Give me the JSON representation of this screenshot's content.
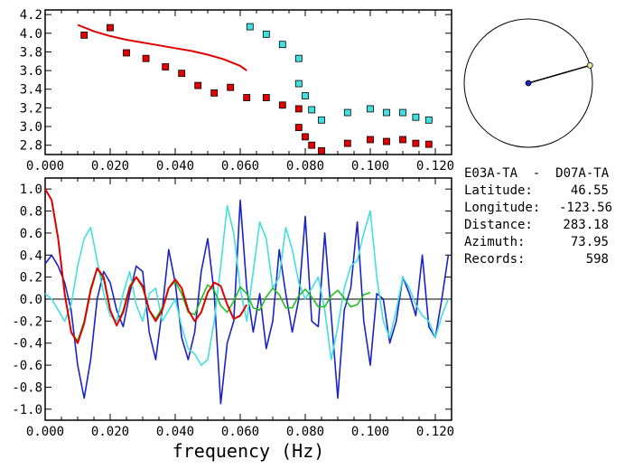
{
  "chart_data": [
    {
      "type": "scatter",
      "xlim": [
        0.0,
        0.125
      ],
      "ylim": [
        2.7,
        4.25
      ],
      "x_ticks": [
        "0.000",
        "0.020",
        "0.040",
        "0.060",
        "0.080",
        "0.100",
        "0.120"
      ],
      "y_ticks": [
        "2.8",
        "3.0",
        "3.2",
        "3.4",
        "3.6",
        "3.8",
        "4.0",
        "4.2"
      ],
      "series": [
        {
          "marker": "square",
          "color": "#e00000",
          "points": [
            [
              0.012,
              3.98
            ],
            [
              0.02,
              4.06
            ],
            [
              0.025,
              3.79
            ],
            [
              0.031,
              3.73
            ],
            [
              0.037,
              3.64
            ],
            [
              0.042,
              3.57
            ],
            [
              0.047,
              3.44
            ],
            [
              0.052,
              3.36
            ],
            [
              0.057,
              3.42
            ],
            [
              0.062,
              3.31
            ],
            [
              0.068,
              3.31
            ],
            [
              0.073,
              3.23
            ],
            [
              0.078,
              3.19
            ],
            [
              0.078,
              2.99
            ],
            [
              0.08,
              2.89
            ],
            [
              0.082,
              2.8
            ],
            [
              0.085,
              2.74
            ],
            [
              0.093,
              2.82
            ],
            [
              0.1,
              2.86
            ],
            [
              0.105,
              2.84
            ],
            [
              0.11,
              2.86
            ],
            [
              0.114,
              2.82
            ],
            [
              0.118,
              2.81
            ]
          ]
        },
        {
          "marker": "square",
          "color": "#40e0e0",
          "points": [
            [
              0.063,
              4.07
            ],
            [
              0.068,
              3.99
            ],
            [
              0.073,
              3.88
            ],
            [
              0.078,
              3.73
            ],
            [
              0.078,
              3.46
            ],
            [
              0.08,
              3.33
            ],
            [
              0.082,
              3.18
            ],
            [
              0.085,
              3.07
            ],
            [
              0.093,
              3.15
            ],
            [
              0.1,
              3.19
            ],
            [
              0.105,
              3.15
            ],
            [
              0.11,
              3.15
            ],
            [
              0.114,
              3.1
            ],
            [
              0.118,
              3.07
            ]
          ]
        },
        {
          "type": "line",
          "color": "#e00000",
          "x": [
            0.01,
            0.015,
            0.02,
            0.025,
            0.03,
            0.035,
            0.04,
            0.045,
            0.05,
            0.055,
            0.06,
            0.062
          ],
          "y": [
            4.09,
            4.02,
            3.97,
            3.93,
            3.9,
            3.87,
            3.84,
            3.81,
            3.77,
            3.72,
            3.65,
            3.6
          ]
        }
      ]
    },
    {
      "type": "line",
      "xlim": [
        0.0,
        0.125
      ],
      "ylim": [
        -1.1,
        1.1
      ],
      "x_ticks": [
        "0.000",
        "0.020",
        "0.040",
        "0.060",
        "0.080",
        "0.100",
        "0.120"
      ],
      "y_ticks": [
        "1.0",
        "0.8",
        "0.6",
        "0.4",
        "0.2",
        "0.0",
        "-0.2",
        "-0.4",
        "-0.6",
        "-0.8",
        "-1.0"
      ],
      "xlabel": "frequency (Hz)",
      "zero_line": true,
      "series": [
        {
          "color": "#1a22c8",
          "x": [
            0.0,
            0.002,
            0.004,
            0.006,
            0.008,
            0.01,
            0.012,
            0.014,
            0.016,
            0.018,
            0.02,
            0.022,
            0.024,
            0.026,
            0.028,
            0.03,
            0.032,
            0.034,
            0.036,
            0.038,
            0.04,
            0.042,
            0.044,
            0.046,
            0.048,
            0.05,
            0.052,
            0.054,
            0.056,
            0.058,
            0.06,
            0.062,
            0.064,
            0.066,
            0.068,
            0.07,
            0.072,
            0.074,
            0.076,
            0.078,
            0.08,
            0.082,
            0.084,
            0.086,
            0.088,
            0.09,
            0.092,
            0.094,
            0.096,
            0.098,
            0.1,
            0.102,
            0.104,
            0.106,
            0.108,
            0.11,
            0.112,
            0.114,
            0.116,
            0.118,
            0.12,
            0.122,
            0.124
          ],
          "y": [
            0.32,
            0.4,
            0.3,
            0.15,
            -0.1,
            -0.6,
            -0.9,
            -0.55,
            0.0,
            0.25,
            0.15,
            -0.1,
            -0.25,
            0.05,
            0.3,
            0.25,
            -0.3,
            -0.55,
            -0.1,
            0.45,
            0.15,
            -0.35,
            -0.55,
            -0.3,
            0.25,
            0.55,
            0.05,
            -0.95,
            -0.4,
            -0.2,
            0.9,
            0.1,
            -0.3,
            0.05,
            -0.45,
            -0.2,
            0.45,
            0.05,
            -0.3,
            0.0,
            0.75,
            -0.2,
            -0.25,
            0.6,
            -0.15,
            -0.9,
            -0.1,
            0.1,
            0.7,
            -0.2,
            -0.6,
            0.05,
            0.0,
            -0.4,
            -0.2,
            0.2,
            0.05,
            -0.15,
            0.4,
            -0.25,
            -0.35,
            0.0,
            0.4
          ]
        },
        {
          "color": "#40e0e0",
          "x": [
            0.0,
            0.002,
            0.004,
            0.006,
            0.008,
            0.01,
            0.012,
            0.014,
            0.016,
            0.018,
            0.02,
            0.022,
            0.024,
            0.026,
            0.028,
            0.03,
            0.032,
            0.034,
            0.036,
            0.038,
            0.04,
            0.042,
            0.044,
            0.046,
            0.048,
            0.05,
            0.052,
            0.054,
            0.056,
            0.058,
            0.06,
            0.062,
            0.064,
            0.066,
            0.068,
            0.07,
            0.072,
            0.074,
            0.076,
            0.078,
            0.08,
            0.082,
            0.084,
            0.086,
            0.088,
            0.09,
            0.092,
            0.094,
            0.096,
            0.098,
            0.1,
            0.102,
            0.104,
            0.106,
            0.108,
            0.11,
            0.112,
            0.114,
            0.116,
            0.118,
            0.12,
            0.122,
            0.124
          ],
          "y": [
            0.05,
            0.0,
            -0.1,
            -0.2,
            -0.05,
            0.3,
            0.55,
            0.65,
            0.35,
            0.05,
            -0.15,
            -0.2,
            0.05,
            0.25,
            -0.05,
            -0.2,
            0.05,
            0.1,
            -0.2,
            -0.1,
            0.0,
            -0.25,
            -0.45,
            -0.5,
            -0.6,
            -0.55,
            -0.2,
            0.3,
            0.85,
            0.6,
            0.1,
            -0.2,
            0.25,
            0.7,
            0.55,
            0.1,
            0.2,
            0.65,
            0.45,
            0.15,
            0.0,
            0.1,
            0.2,
            -0.1,
            -0.55,
            -0.25,
            0.1,
            0.3,
            0.35,
            0.6,
            0.8,
            0.2,
            -0.2,
            -0.35,
            -0.1,
            0.2,
            0.1,
            -0.05,
            -0.15,
            -0.2,
            -0.35,
            -0.15,
            0.0
          ]
        },
        {
          "color": "#20c020",
          "x": [
            0.0,
            0.002,
            0.004,
            0.006,
            0.008,
            0.01,
            0.012,
            0.014,
            0.016,
            0.018,
            0.02,
            0.022,
            0.024,
            0.026,
            0.028,
            0.03,
            0.032,
            0.034,
            0.036,
            0.038,
            0.04,
            0.042,
            0.044,
            0.046,
            0.048,
            0.05,
            0.052,
            0.054,
            0.056,
            0.058,
            0.06,
            0.062,
            0.064,
            0.066,
            0.068,
            0.07,
            0.072,
            0.074,
            0.076,
            0.078,
            0.08,
            0.082,
            0.084,
            0.086,
            0.088,
            0.09,
            0.092,
            0.094,
            0.096,
            0.098,
            0.1
          ],
          "y": [
            1.0,
            0.9,
            0.55,
            0.05,
            -0.3,
            -0.38,
            -0.2,
            0.1,
            0.28,
            0.18,
            -0.1,
            -0.24,
            -0.1,
            0.12,
            0.2,
            0.1,
            -0.1,
            -0.18,
            -0.08,
            0.1,
            0.16,
            0.05,
            -0.12,
            -0.14,
            0.0,
            0.13,
            0.08,
            -0.06,
            -0.12,
            -0.02,
            0.11,
            0.05,
            -0.08,
            -0.1,
            0.02,
            0.1,
            0.04,
            -0.08,
            -0.08,
            0.03,
            0.09,
            0.02,
            -0.07,
            -0.07,
            0.03,
            0.08,
            0.01,
            -0.07,
            -0.05,
            0.04,
            0.06
          ]
        },
        {
          "color": "#e00000",
          "x": [
            0.0,
            0.002,
            0.004,
            0.006,
            0.008,
            0.01,
            0.012,
            0.014,
            0.016,
            0.018,
            0.02,
            0.022,
            0.024,
            0.026,
            0.028,
            0.03,
            0.032,
            0.034,
            0.036,
            0.038,
            0.04,
            0.042,
            0.044,
            0.046,
            0.048,
            0.05,
            0.052,
            0.054,
            0.056,
            0.058,
            0.06,
            0.062
          ],
          "y": [
            1.0,
            0.9,
            0.55,
            0.05,
            -0.3,
            -0.4,
            -0.22,
            0.08,
            0.28,
            0.2,
            -0.1,
            -0.24,
            -0.12,
            0.1,
            0.2,
            0.12,
            -0.1,
            -0.2,
            -0.1,
            0.1,
            0.18,
            0.1,
            -0.1,
            -0.2,
            -0.12,
            0.06,
            0.15,
            0.12,
            -0.05,
            -0.18,
            -0.15,
            -0.05
          ]
        }
      ]
    }
  ],
  "compass": {
    "azimuth_deg": 73.95
  },
  "station": {
    "title": "E03A-TA  -  D07A-TA",
    "rows": [
      {
        "label": "Latitude:",
        "value": "46.55"
      },
      {
        "label": "Longitude:",
        "value": "-123.56"
      },
      {
        "label": "Distance:",
        "value": "283.18"
      },
      {
        "label": "Azimuth:",
        "value": "73.95"
      },
      {
        "label": "Records:",
        "value": "598"
      }
    ]
  }
}
